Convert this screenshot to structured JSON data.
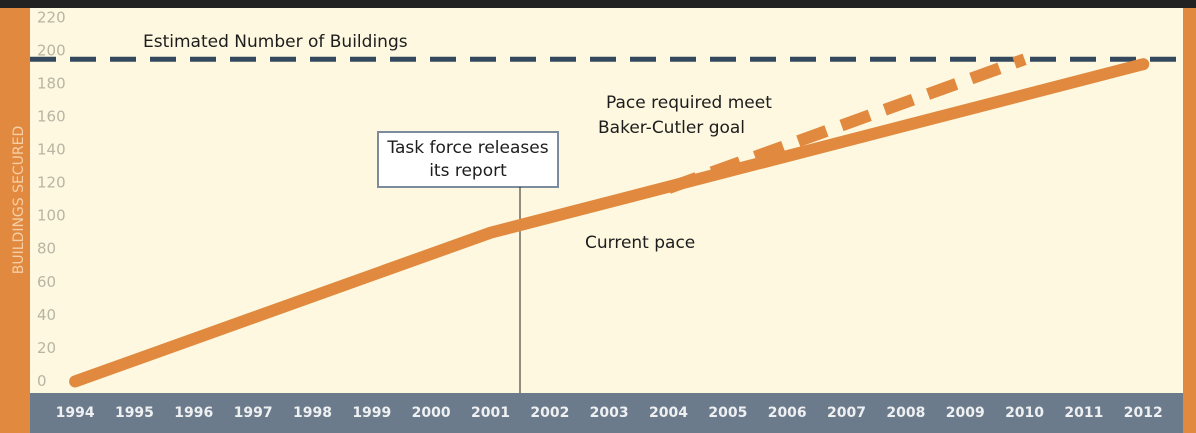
{
  "chart_data": {
    "type": "line",
    "ylabel": "BUILDINGS SECURED",
    "xlim": [
      1993.24,
      2012.67
    ],
    "ylim": [
      -7,
      226
    ],
    "xticks": [
      1994,
      1995,
      1996,
      1997,
      1998,
      1999,
      2000,
      2001,
      2002,
      2003,
      2004,
      2005,
      2006,
      2007,
      2008,
      2009,
      2010,
      2011,
      2012
    ],
    "yticks": [
      0,
      20,
      40,
      60,
      80,
      100,
      120,
      140,
      160,
      180,
      200,
      220
    ],
    "reference_lines": [
      {
        "value": 195,
        "label": "Estimated Number of Buildings",
        "color": "#34495e"
      }
    ],
    "series": [
      {
        "name": "Current pace",
        "color": "#e0893f",
        "x": [
          1994,
          2001,
          2012
        ],
        "values": [
          0,
          90,
          192
        ]
      },
      {
        "color": "#e0893f",
        "style": "dashed",
        "x": [
          2004,
          2010
        ],
        "values": [
          117,
          195
        ]
      }
    ],
    "annotations": [
      {
        "lines": [
          "Pace required meet",
          "Baker-Cutler goal"
        ]
      },
      {
        "lines": [
          "Task force releases",
          "its report"
        ]
      }
    ]
  }
}
